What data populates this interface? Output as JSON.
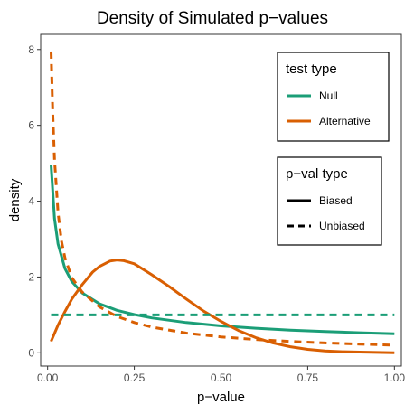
{
  "chart_data": {
    "type": "line",
    "title": "Density of Simulated p−values",
    "xlabel": "p−value",
    "ylabel": "density",
    "xlim": [
      -0.02,
      1.02
    ],
    "ylim": [
      -0.35,
      8.4
    ],
    "x_ticks": [
      0,
      0.25,
      0.5,
      0.75,
      1
    ],
    "x_tick_labels": [
      "0.00",
      "0.25",
      "0.50",
      "0.75",
      "1.00"
    ],
    "y_ticks": [
      0,
      2,
      4,
      6,
      8
    ],
    "y_tick_labels": [
      "0",
      "2",
      "4",
      "6",
      "8"
    ],
    "grid": false,
    "colors": {
      "Null": "#1b9e77",
      "Alternative": "#d95f02"
    },
    "legend_position": "right-inside",
    "legends": [
      {
        "title": "test type",
        "items": [
          {
            "label": "Null",
            "color": "#1b9e77",
            "linetype": "solid"
          },
          {
            "label": "Alternative",
            "color": "#d95f02",
            "linetype": "solid"
          }
        ]
      },
      {
        "title": "p−val type",
        "items": [
          {
            "label": "Biased",
            "color": "#000000",
            "linetype": "solid"
          },
          {
            "label": "Unbiased",
            "color": "#000000",
            "linetype": "dashed"
          }
        ]
      }
    ],
    "series": [
      {
        "test_type": "Null",
        "pval_type": "Biased",
        "color": "#1b9e77",
        "linetype": "solid",
        "x": [
          0.01,
          0.02,
          0.03,
          0.05,
          0.07,
          0.1,
          0.15,
          0.2,
          0.25,
          0.3,
          0.4,
          0.5,
          0.6,
          0.7,
          0.8,
          0.9,
          1.0
        ],
        "y": [
          4.95,
          3.54,
          2.87,
          2.22,
          1.88,
          1.58,
          1.29,
          1.12,
          1.01,
          0.92,
          0.8,
          0.71,
          0.65,
          0.6,
          0.56,
          0.53,
          0.5
        ]
      },
      {
        "test_type": "Null",
        "pval_type": "Unbiased",
        "color": "#1b9e77",
        "linetype": "dashed",
        "x": [
          0.01,
          1.0
        ],
        "y": [
          1.0,
          1.0
        ]
      },
      {
        "test_type": "Alternative",
        "pval_type": "Biased",
        "color": "#d95f02",
        "linetype": "solid",
        "x": [
          0.01,
          0.03,
          0.05,
          0.07,
          0.1,
          0.13,
          0.15,
          0.18,
          0.2,
          0.22,
          0.25,
          0.3,
          0.35,
          0.4,
          0.45,
          0.5,
          0.55,
          0.6,
          0.65,
          0.7,
          0.75,
          0.8,
          0.85,
          0.9,
          0.95,
          1.0
        ],
        "y": [
          0.3,
          0.73,
          1.09,
          1.42,
          1.8,
          2.13,
          2.28,
          2.42,
          2.45,
          2.43,
          2.35,
          2.06,
          1.75,
          1.42,
          1.1,
          0.83,
          0.59,
          0.4,
          0.26,
          0.16,
          0.09,
          0.05,
          0.03,
          0.02,
          0.01,
          0.0
        ]
      },
      {
        "test_type": "Alternative",
        "pval_type": "Unbiased",
        "color": "#d95f02",
        "linetype": "dashed",
        "x": [
          0.01,
          0.015,
          0.02,
          0.03,
          0.04,
          0.05,
          0.07,
          0.1,
          0.15,
          0.2,
          0.25,
          0.3,
          0.4,
          0.5,
          0.6,
          0.7,
          0.8,
          0.9,
          1.0
        ],
        "y": [
          7.95,
          6.3,
          5.1,
          3.7,
          2.95,
          2.5,
          1.98,
          1.6,
          1.21,
          0.96,
          0.8,
          0.68,
          0.52,
          0.42,
          0.35,
          0.3,
          0.26,
          0.23,
          0.2
        ]
      }
    ]
  }
}
